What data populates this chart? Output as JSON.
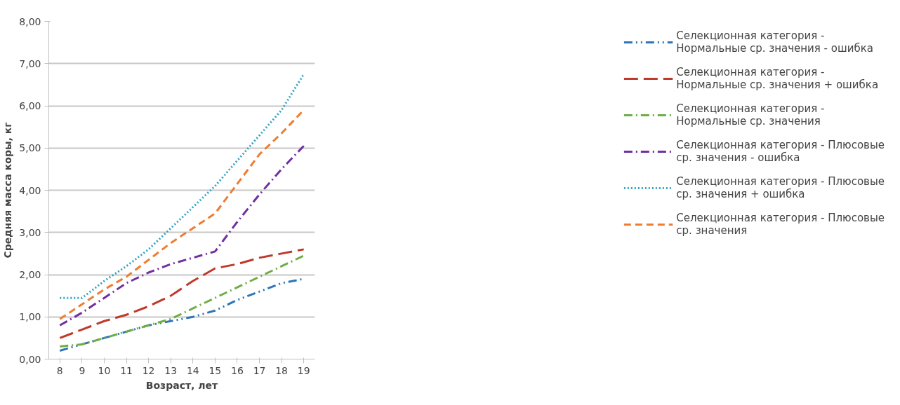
{
  "chart_data": {
    "type": "line",
    "xlabel": "Возраст, лет",
    "ylabel": "Средняя масса коры, кг",
    "categories": [
      "8",
      "9",
      "10",
      "11",
      "12",
      "13",
      "14",
      "15",
      "16",
      "17",
      "18",
      "19"
    ],
    "ylim": [
      0,
      8
    ],
    "yticks": [
      {
        "value": 0,
        "label": "0,00"
      },
      {
        "value": 1,
        "label": "1,00"
      },
      {
        "value": 2,
        "label": "2,00"
      },
      {
        "value": 3,
        "label": "3,00"
      },
      {
        "value": 4,
        "label": "4,00"
      },
      {
        "value": 5,
        "label": "5,00"
      },
      {
        "value": 6,
        "label": "6,00"
      },
      {
        "value": 7,
        "label": "7,00"
      },
      {
        "value": 8,
        "label": "8,00"
      }
    ],
    "grid": "y",
    "legend": "right",
    "marker": "none",
    "series": [
      {
        "name": "Селекционная категория - Нормальные ср. значения - ошибка",
        "color": "#2e75b6",
        "line_style": "dashdotdot",
        "values": [
          0.2,
          0.35,
          0.5,
          0.65,
          0.8,
          0.9,
          1.0,
          1.15,
          1.4,
          1.6,
          1.8,
          1.9
        ]
      },
      {
        "name": "Селекционная категория - Нормальные ср. значения + ошибка",
        "color": "#c0392b",
        "line_style": "longdashed",
        "values": [
          0.5,
          0.7,
          0.9,
          1.05,
          1.25,
          1.5,
          1.85,
          2.15,
          2.25,
          2.4,
          2.5,
          2.6
        ]
      },
      {
        "name": "Селекционная категория - Нормальные ср. значения",
        "color": "#70ad47",
        "line_style": "dashdot",
        "values": [
          0.3,
          0.35,
          0.5,
          0.65,
          0.8,
          0.95,
          1.2,
          1.45,
          1.7,
          1.95,
          2.2,
          2.45
        ]
      },
      {
        "name": "Селекционная категория - Плюсовые ср. значения - ошибка",
        "color": "#7030a0",
        "line_style": "dashdot",
        "values": [
          0.8,
          1.1,
          1.45,
          1.8,
          2.05,
          2.25,
          2.4,
          2.55,
          3.25,
          3.9,
          4.5,
          5.05
        ]
      },
      {
        "name": "Селекционная категория - Плюсовые ср. значения + ошибка",
        "color": "#31a3c4",
        "line_style": "dotted",
        "values": [
          1.45,
          1.45,
          1.85,
          2.2,
          2.6,
          3.1,
          3.6,
          4.1,
          4.7,
          5.3,
          5.9,
          6.75
        ]
      },
      {
        "name": "Селекционная категория - Плюсовые ср. значения",
        "color": "#ed7d31",
        "line_style": "dashed",
        "values": [
          0.95,
          1.3,
          1.65,
          1.95,
          2.35,
          2.75,
          3.1,
          3.45,
          4.15,
          4.85,
          5.35,
          5.9
        ]
      }
    ]
  }
}
